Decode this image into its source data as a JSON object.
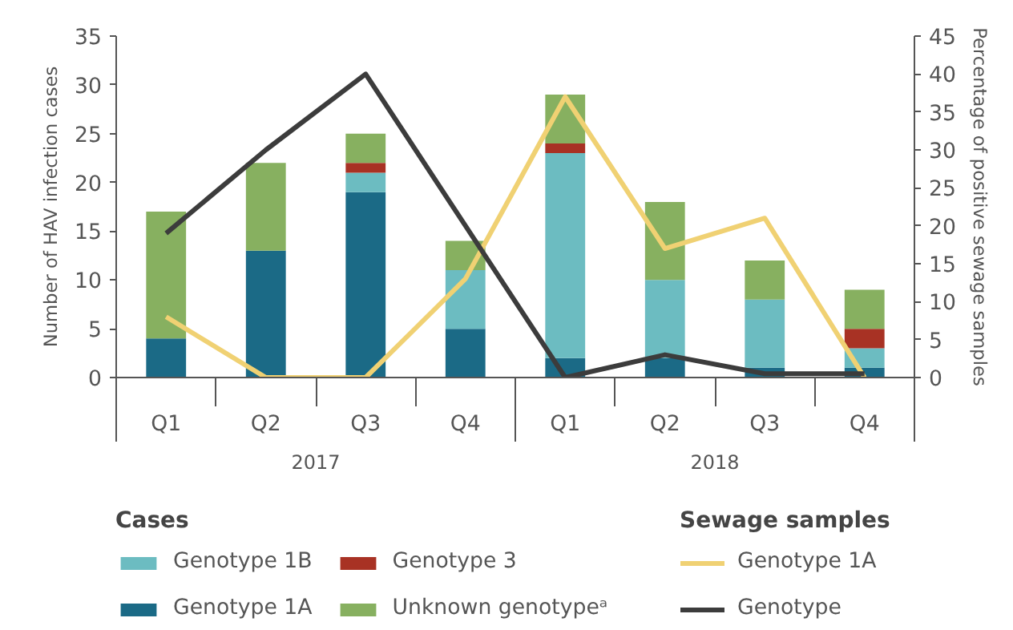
{
  "chart_data": {
    "type": "bar",
    "stacked": true,
    "categories": [
      "Q1",
      "Q2",
      "Q3",
      "Q4",
      "Q1",
      "Q2",
      "Q3",
      "Q4"
    ],
    "annotations": [
      "2017",
      "2018"
    ],
    "ylabel": "Number of HAV infection cases",
    "y2label": "Percentage of positive sewage samples",
    "ylim": [
      0,
      35
    ],
    "yticks": [
      0,
      5,
      10,
      15,
      20,
      25,
      30,
      35
    ],
    "y2lim": [
      0,
      45
    ],
    "y2ticks": [
      0,
      5,
      10,
      15,
      20,
      25,
      30,
      35,
      40,
      45
    ],
    "legend": "bottom",
    "grid": false,
    "series": [
      {
        "name": "Genotype 1A",
        "color": "#1b6a86",
        "values": [
          4,
          13,
          19,
          5,
          2,
          2,
          1,
          1
        ]
      },
      {
        "name": "Genotype 1B",
        "color": "#6cbcc1",
        "values": [
          0,
          0,
          2,
          6,
          21,
          8,
          7,
          2
        ]
      },
      {
        "name": "Genotype 3",
        "color": "#a83224",
        "values": [
          0,
          0,
          1,
          0,
          1,
          0,
          0,
          2
        ]
      },
      {
        "name": "Unknown genotypeᵃ",
        "color": "#87b060",
        "values": [
          13,
          9,
          3,
          3,
          5,
          8,
          4,
          4
        ]
      },
      {
        "name": "Genotype 1A",
        "type": "line",
        "axis": "y2",
        "color": "#f0d173",
        "values": [
          8,
          0,
          0,
          13,
          37,
          17,
          21,
          0
        ]
      },
      {
        "name": "Genotype",
        "type": "line",
        "axis": "y2",
        "color": "#3c3c3c",
        "values": [
          19,
          30,
          40,
          20,
          0,
          3,
          0.5,
          0.5
        ]
      }
    ],
    "legend_title": "Cases",
    "subtitle": "Sewage samples"
  }
}
